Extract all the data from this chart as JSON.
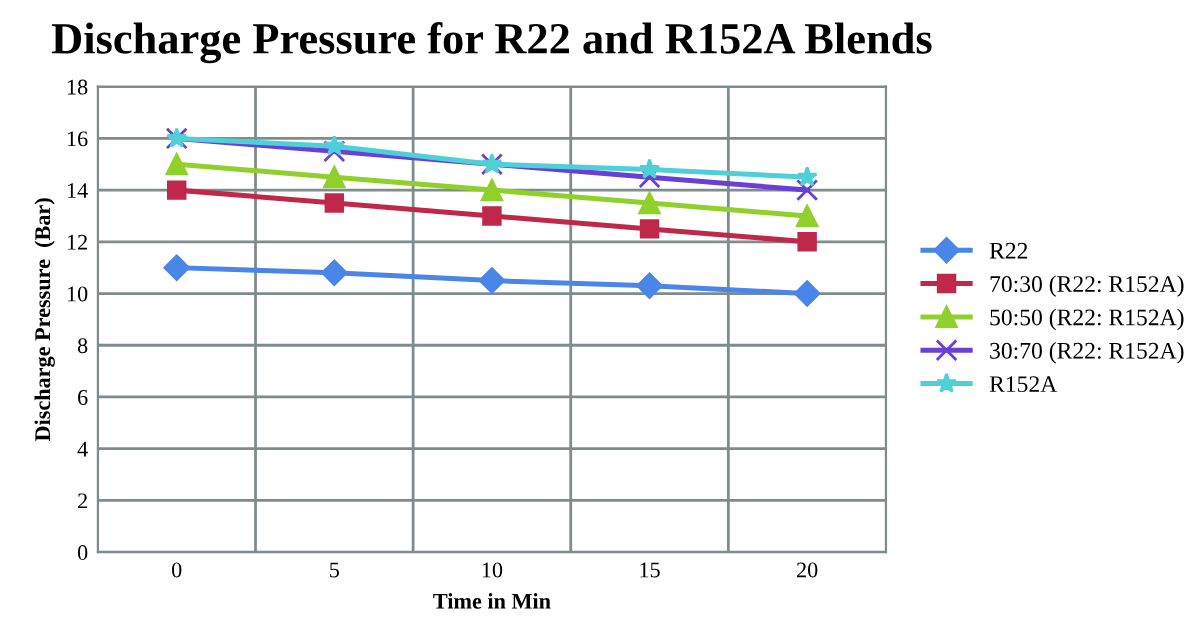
{
  "chart_data": {
    "type": "line",
    "title": "Discharge Pressure for R22 and R152A Blends",
    "xlabel": "Time in Min",
    "ylabel": "Discharge Pressure  (Bar)",
    "categories": [
      "0",
      "5",
      "10",
      "15",
      "20"
    ],
    "series": [
      {
        "name": "R22",
        "color": "#4a86e8",
        "marker": "diamond",
        "values": [
          11,
          10.8,
          10.5,
          10.3,
          10
        ]
      },
      {
        "name": "70:30 (R22: R152A)",
        "color": "#c0284a",
        "marker": "square",
        "values": [
          14,
          13.5,
          13,
          12.5,
          12
        ]
      },
      {
        "name": "50:50 (R22: R152A)",
        "color": "#8fd12a",
        "marker": "triangle",
        "values": [
          15,
          14.5,
          14,
          13.5,
          13
        ]
      },
      {
        "name": "30:70 (R22: R152A)",
        "color": "#6a3fd6",
        "marker": "cross",
        "values": [
          16,
          15.5,
          15,
          14.5,
          14
        ]
      },
      {
        "name": "R152A",
        "color": "#4fd0d8",
        "marker": "star",
        "values": [
          16,
          15.7,
          15,
          14.8,
          14.5
        ]
      }
    ],
    "ylim": [
      0,
      18
    ],
    "yticks": [
      0,
      2,
      4,
      6,
      8,
      10,
      12,
      14,
      16,
      18
    ],
    "grid": true,
    "legend": "right"
  }
}
